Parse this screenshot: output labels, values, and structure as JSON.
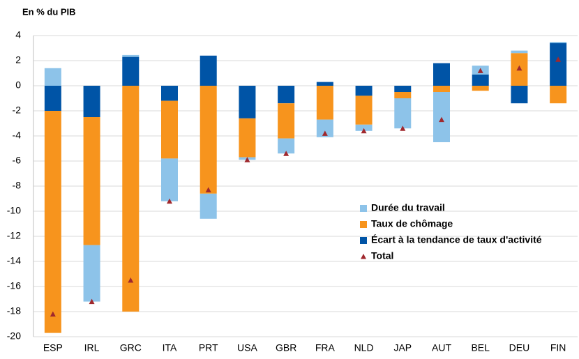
{
  "chart_data": {
    "type": "bar",
    "stacked": true,
    "title": "En % du PIB",
    "categories": [
      "ESP",
      "IRL",
      "GRC",
      "ITA",
      "PRT",
      "USA",
      "GBR",
      "FRA",
      "NLD",
      "JAP",
      "AUT",
      "BEL",
      "DEU",
      "FIN"
    ],
    "series": [
      {
        "name": "Durée du travail",
        "color": "#8dc3e9",
        "values": [
          1.4,
          -4.5,
          0.15,
          -3.4,
          -2,
          -0.2,
          -1.2,
          -1.4,
          -0.5,
          -2.4,
          -4,
          0.7,
          0.2,
          0.1
        ]
      },
      {
        "name": "Taux de chômage",
        "color": "#f7941d",
        "values": [
          -17.7,
          -10.2,
          -18,
          -4.6,
          -8.6,
          -3.1,
          -2.8,
          -2.7,
          -2.3,
          -0.5,
          -0.5,
          -0.4,
          2.6,
          -1.4
        ]
      },
      {
        "name": "Écart à la tendance de taux d'activité",
        "color": "#0054a6",
        "values": [
          -2,
          -2.5,
          2.3,
          -1.2,
          2.4,
          -2.6,
          -1.4,
          0.3,
          -0.8,
          -0.5,
          1.8,
          0.9,
          -1.4,
          3.4
        ]
      },
      {
        "name": "Total",
        "color": "#a0282d",
        "marker": "triangle",
        "values": [
          -18.2,
          -17.2,
          -15.5,
          -9.2,
          -8.3,
          -5.9,
          -5.4,
          -3.8,
          -3.6,
          -3.4,
          -2.7,
          1.2,
          1.4,
          2.1
        ]
      }
    ],
    "ylim": [
      -20,
      4
    ],
    "yticks": [
      -20,
      -18,
      -16,
      -14,
      -12,
      -10,
      -8,
      -6,
      -4,
      -2,
      0,
      2,
      4
    ],
    "grid": true
  }
}
